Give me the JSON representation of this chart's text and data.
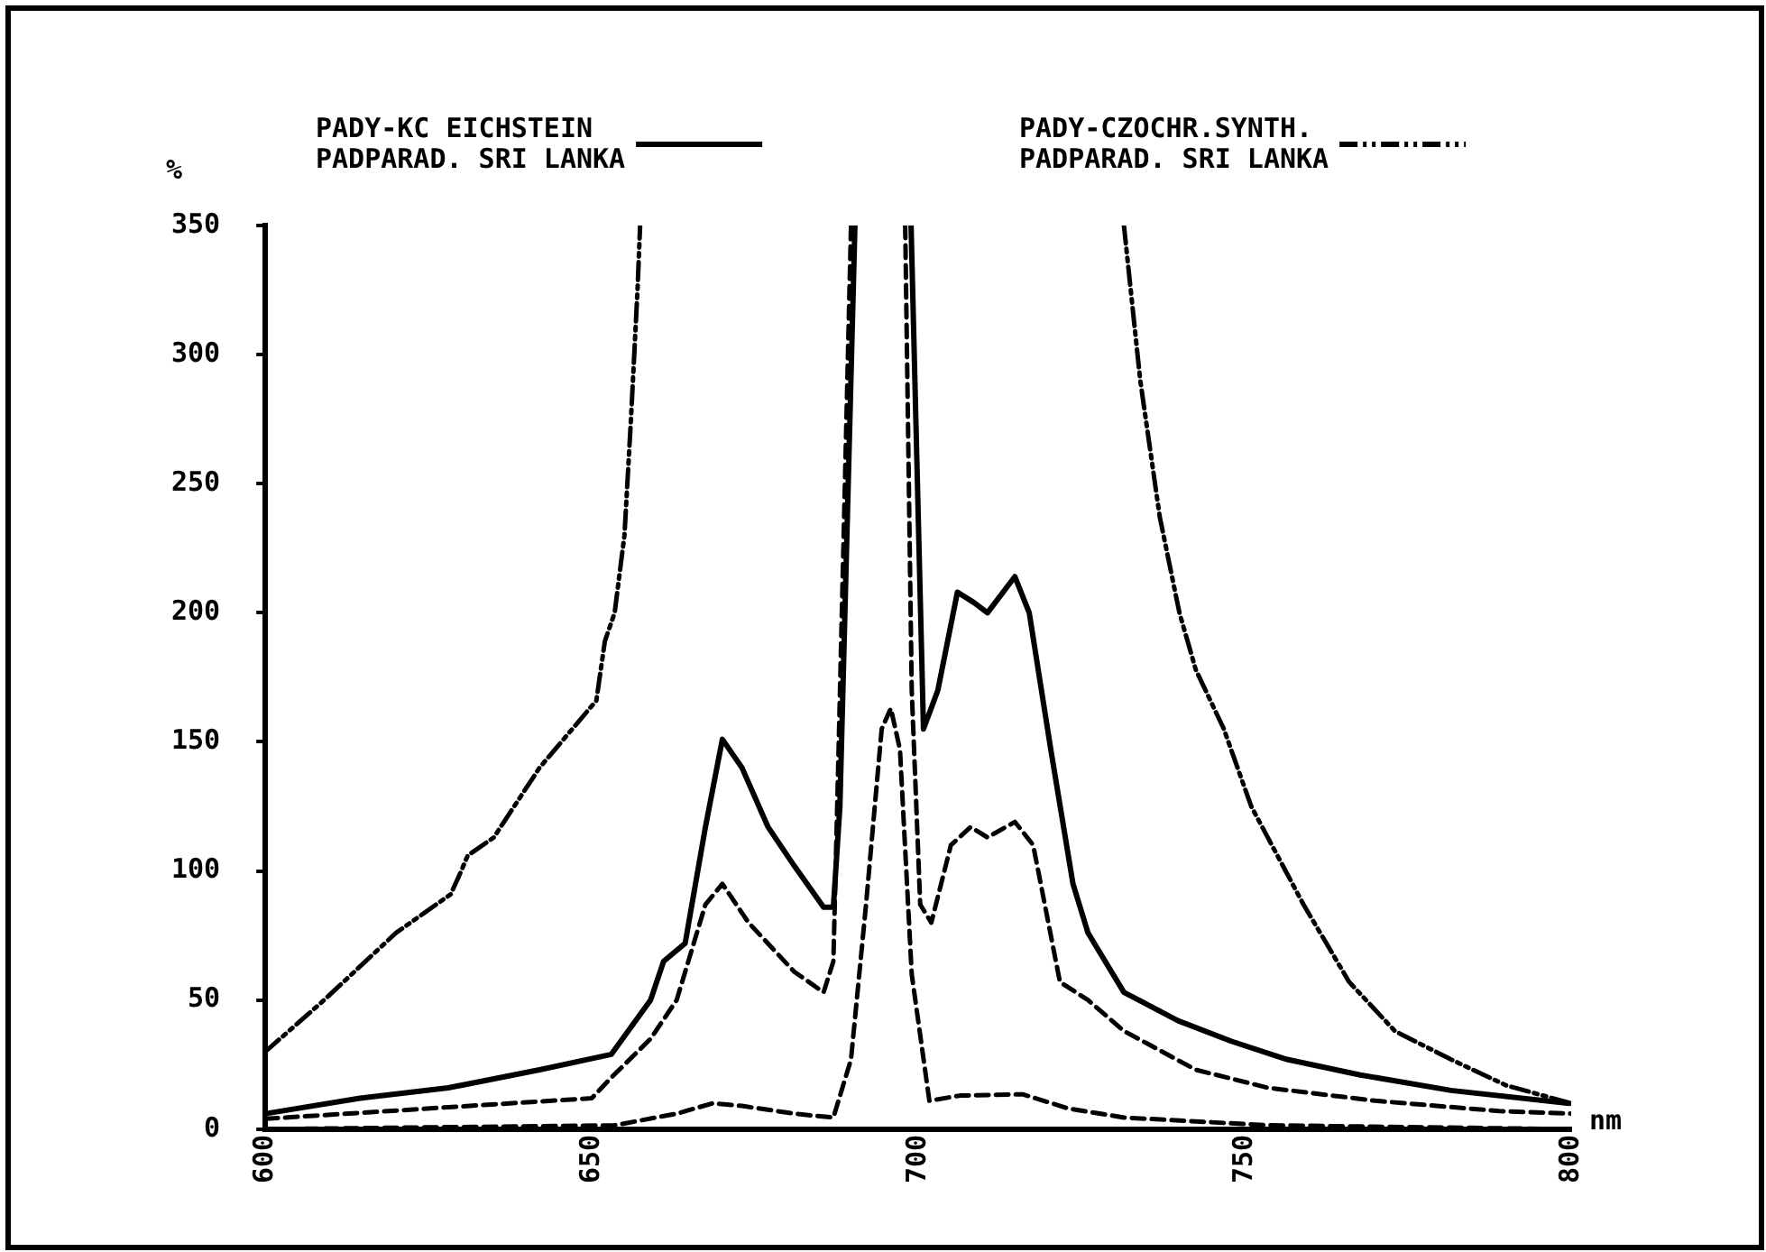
{
  "chart_data": {
    "type": "line",
    "xlabel": "nm",
    "ylabel": "%",
    "xlim": [
      600,
      800
    ],
    "xticks": [
      600,
      650,
      700,
      750,
      800
    ],
    "ylim": [
      0,
      350
    ],
    "yticks": [
      0,
      50,
      100,
      150,
      200,
      250,
      300,
      350
    ],
    "grid": false,
    "legend": "top",
    "marker": "none",
    "series": [
      {
        "name": "PADY-KC EICHSTEIN\nPADPARAD. SRI LANKA",
        "color": "#000000",
        "line_style": "solid",
        "x": [
          600,
          614.5,
          628,
          642,
          653,
          659,
          661,
          664.3,
          667.4,
          670,
          673,
          677,
          681,
          685.5,
          687,
          688,
          689,
          690.3,
          694,
          698.9,
          700.8,
          703,
          706,
          708.5,
          710.6,
          714.8,
          717,
          720.3,
          723.7,
          726,
          731.5,
          739.8,
          748,
          756.5,
          767.7,
          781.6,
          799.7
        ],
        "values": [
          6,
          12,
          16,
          23,
          29,
          50,
          65,
          72,
          117,
          151,
          140,
          117,
          102,
          86,
          86,
          125,
          223,
          350,
          null,
          350,
          155,
          170,
          208,
          204,
          200,
          214,
          200,
          147,
          95,
          76,
          53,
          42,
          34,
          27,
          21,
          15,
          10
        ]
      },
      {
        "name": "PADY-CZOCHR.SYNTH.\nPADPARAD. SRI LANKA",
        "color": "#000000",
        "line_style": "dashdot",
        "x": [
          600,
          609,
          620,
          628.4,
          630,
          631,
          635,
          642,
          650.7,
          652,
          653.5,
          655,
          656,
          657,
          657.4,
          695,
          731.5,
          734,
          737,
          740,
          742.5,
          746.8,
          751,
          759,
          766,
          773,
          781.6,
          790,
          800
        ],
        "values": [
          30,
          50,
          76,
          91,
          100,
          106,
          113,
          140,
          166,
          189,
          200,
          230,
          275,
          325,
          350,
          null,
          350,
          290,
          237,
          200,
          178,
          155,
          125,
          87,
          57,
          38,
          27,
          17,
          10
        ]
      },
      {
        "color": "#000000",
        "line_style": "dashed",
        "x": [
          600,
          650,
          653,
          659,
          663,
          667.4,
          670,
          674,
          681,
          685.5,
          687,
          687.8,
          689.7,
          694,
          698,
          699,
          700.3,
          702,
          705,
          708,
          710.6,
          714.8,
          717.6,
          721.7,
          726,
          731.5,
          742.5,
          753.6,
          770,
          789,
          800
        ],
        "values": [
          4,
          12,
          20,
          35,
          50,
          87,
          95,
          80,
          61,
          53,
          65,
          147,
          350,
          null,
          350,
          170,
          87,
          80,
          110,
          117,
          113,
          119,
          110,
          57,
          50,
          38,
          23,
          16,
          11,
          7,
          6
        ]
      },
      {
        "color": "#000000",
        "line_style": "dashed",
        "x": [
          600,
          653.5,
          663,
          668.5,
          673,
          681,
          687,
          689.7,
          692,
          694.4,
          695.8,
          697.2,
          699,
          701.7,
          706.4,
          716,
          723,
          731.5,
          753.6,
          800
        ],
        "values": [
          0,
          1.5,
          6,
          10,
          9,
          6,
          4.5,
          27,
          87,
          155,
          163,
          147,
          60,
          11,
          13,
          13.5,
          8,
          4.5,
          1.5,
          0
        ]
      }
    ]
  }
}
